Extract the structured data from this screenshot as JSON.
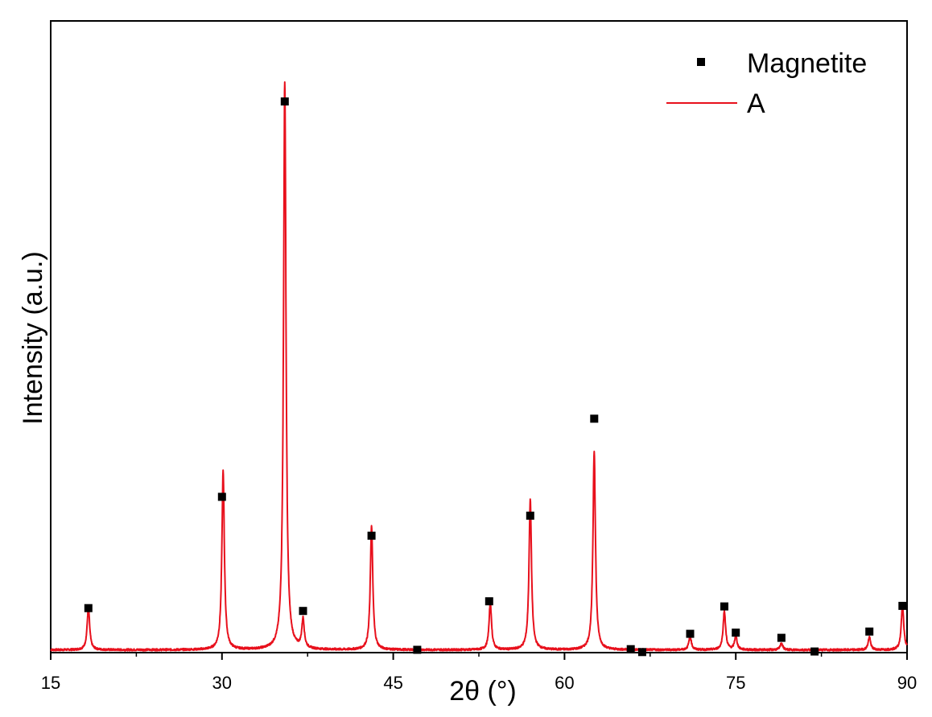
{
  "chart_data": {
    "type": "line",
    "xlabel": "2θ (°)",
    "ylabel": "Intensity (a.u.)",
    "xlim": [
      15,
      90
    ],
    "ylim": [
      0,
      100
    ],
    "xticks": [
      "15",
      "30",
      "45",
      "60",
      "75",
      "90"
    ],
    "grid": false,
    "legend_position": "top-right",
    "series": [
      {
        "name": "A",
        "kind": "line",
        "color": "#e8101c",
        "baseline": 0.3,
        "peaks": [
          {
            "x": 18.3,
            "y": 7.5
          },
          {
            "x": 30.1,
            "y": 31.3
          },
          {
            "x": 35.5,
            "y": 100
          },
          {
            "x": 37.1,
            "y": 5.1
          },
          {
            "x": 43.1,
            "y": 21.7
          },
          {
            "x": 53.5,
            "y": 8.3
          },
          {
            "x": 57.0,
            "y": 26.4
          },
          {
            "x": 62.6,
            "y": 34.8
          },
          {
            "x": 71.0,
            "y": 2.4
          },
          {
            "x": 74.0,
            "y": 6.8
          },
          {
            "x": 75.0,
            "y": 2.4
          },
          {
            "x": 79.0,
            "y": 1.2
          },
          {
            "x": 86.7,
            "y": 2.2
          },
          {
            "x": 89.6,
            "y": 7.9
          }
        ]
      },
      {
        "name": "Magnetite",
        "kind": "marker",
        "color": "#000000",
        "points": [
          {
            "x": 18.3,
            "y": 7.8
          },
          {
            "x": 30.0,
            "y": 27.3
          },
          {
            "x": 35.5,
            "y": 96.6
          },
          {
            "x": 37.1,
            "y": 7.3
          },
          {
            "x": 43.1,
            "y": 20.5
          },
          {
            "x": 47.1,
            "y": 0.5
          },
          {
            "x": 53.4,
            "y": 9.0
          },
          {
            "x": 57.0,
            "y": 24.0
          },
          {
            "x": 62.6,
            "y": 41.0
          },
          {
            "x": 65.8,
            "y": 0.6
          },
          {
            "x": 66.8,
            "y": 0.1
          },
          {
            "x": 71.0,
            "y": 3.3
          },
          {
            "x": 74.0,
            "y": 8.1
          },
          {
            "x": 75.0,
            "y": 3.5
          },
          {
            "x": 79.0,
            "y": 2.6
          },
          {
            "x": 81.9,
            "y": 0.2
          },
          {
            "x": 86.7,
            "y": 3.7
          },
          {
            "x": 89.6,
            "y": 8.2
          }
        ]
      }
    ]
  }
}
